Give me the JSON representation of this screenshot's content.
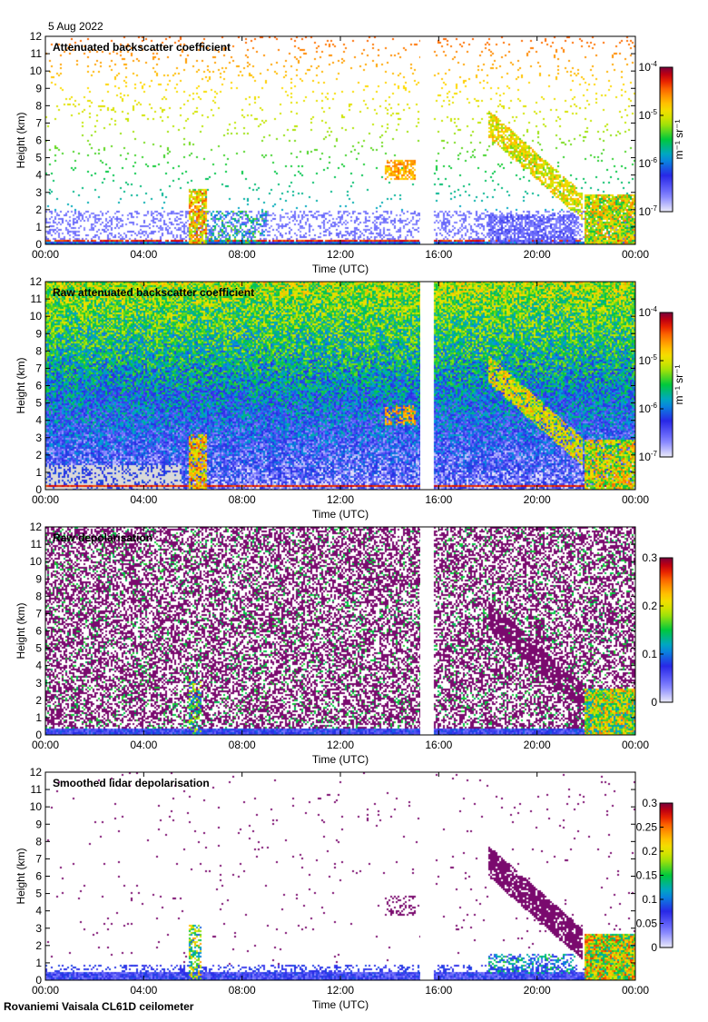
{
  "date": "5 Aug 2022",
  "footer": "Rovaniemi Vaisala CL61D ceilometer",
  "time_ticks": [
    "00:00",
    "04:00",
    "08:00",
    "12:00",
    "16:00",
    "20:00",
    "00:00"
  ],
  "height_ticks": [
    "0",
    "1",
    "2",
    "3",
    "4",
    "5",
    "6",
    "7",
    "8",
    "9",
    "10",
    "11",
    "12"
  ],
  "xlabel": "Time (UTC)",
  "ylabel": "Height (km)",
  "backscatter_unit": "m⁻¹ sr⁻¹",
  "colors": {
    "frame": "#000000",
    "gap": "#ffffff",
    "background_clear": "#ffffff",
    "low_noise": "#d9d9d9"
  },
  "chart_data": [
    {
      "type": "heatmap",
      "title": "Attenuated backscatter coefficient",
      "xlabel": "Time (UTC)",
      "ylabel": "Height (km)",
      "xlim": [
        0,
        24
      ],
      "ylim": [
        0,
        12
      ],
      "colorbar": {
        "scale": "log",
        "range": [
          1e-07,
          0.0001
        ],
        "ticks": [
          {
            "value": 0.0001,
            "base": "10",
            "exp": "-4"
          },
          {
            "value": 1e-05,
            "base": "10",
            "exp": "-5"
          },
          {
            "value": 1e-06,
            "base": "10",
            "exp": "-6"
          },
          {
            "value": 1e-07,
            "base": "10",
            "exp": "-7"
          }
        ],
        "unit": "m-1 sr-1"
      },
      "gap_hours": [
        15.25,
        15.75
      ],
      "features": [
        {
          "name": "boundary layer",
          "t": [
            0,
            24
          ],
          "top_km": 0.3
        },
        {
          "name": "low cloud",
          "t": [
            5.8,
            6.5
          ],
          "top_km": 3.2
        },
        {
          "name": "mid cloud",
          "t": [
            13.8,
            15.0
          ],
          "top_km": 4.8
        },
        {
          "name": "frontal cloud",
          "t": [
            18.0,
            21.8
          ],
          "top_km": 7.7
        },
        {
          "name": "low thick cloud",
          "t": [
            22.0,
            24
          ],
          "top_km": 2.9
        }
      ]
    },
    {
      "type": "heatmap",
      "title": "Raw attenuated backscatter coefficient",
      "xlabel": "Time (UTC)",
      "ylabel": "Height (km)",
      "xlim": [
        0,
        24
      ],
      "ylim": [
        0,
        12
      ],
      "colorbar": {
        "scale": "log",
        "range": [
          1e-07,
          0.0001
        ],
        "ticks": [
          {
            "value": 0.0001,
            "base": "10",
            "exp": "-4"
          },
          {
            "value": 1e-05,
            "base": "10",
            "exp": "-5"
          },
          {
            "value": 1e-06,
            "base": "10",
            "exp": "-6"
          },
          {
            "value": 1e-07,
            "base": "10",
            "exp": "-7"
          }
        ],
        "unit": "m-1 sr-1"
      },
      "gap_hours": [
        15.25,
        15.75
      ]
    },
    {
      "type": "heatmap",
      "title": "Raw depolarisation",
      "xlabel": "Time (UTC)",
      "ylabel": "Height (km)",
      "xlim": [
        0,
        24
      ],
      "ylim": [
        0,
        12
      ],
      "colorbar": {
        "scale": "linear",
        "range": [
          0,
          0.3
        ],
        "ticks": [
          {
            "value": 0.3,
            "label": "0.3"
          },
          {
            "value": 0.2,
            "label": "0.2"
          },
          {
            "value": 0.1,
            "label": "0.1"
          },
          {
            "value": 0,
            "label": "0"
          }
        ]
      },
      "gap_hours": [
        15.25,
        15.75
      ]
    },
    {
      "type": "heatmap",
      "title": "Smoothed lidar depolarisation",
      "xlabel": "Time (UTC)",
      "ylabel": "Height (km)",
      "xlim": [
        0,
        24
      ],
      "ylim": [
        0,
        12
      ],
      "colorbar": {
        "scale": "linear",
        "range": [
          0,
          0.3
        ],
        "ticks": [
          {
            "value": 0.3,
            "label": "0.3"
          },
          {
            "value": 0.25,
            "label": "0.25"
          },
          {
            "value": 0.2,
            "label": "0.2"
          },
          {
            "value": 0.15,
            "label": "0.15"
          },
          {
            "value": 0.1,
            "label": "0.1"
          },
          {
            "value": 0.05,
            "label": "0.05"
          },
          {
            "value": 0,
            "label": "0"
          }
        ]
      },
      "gap_hours": [
        15.25,
        15.75
      ]
    }
  ]
}
